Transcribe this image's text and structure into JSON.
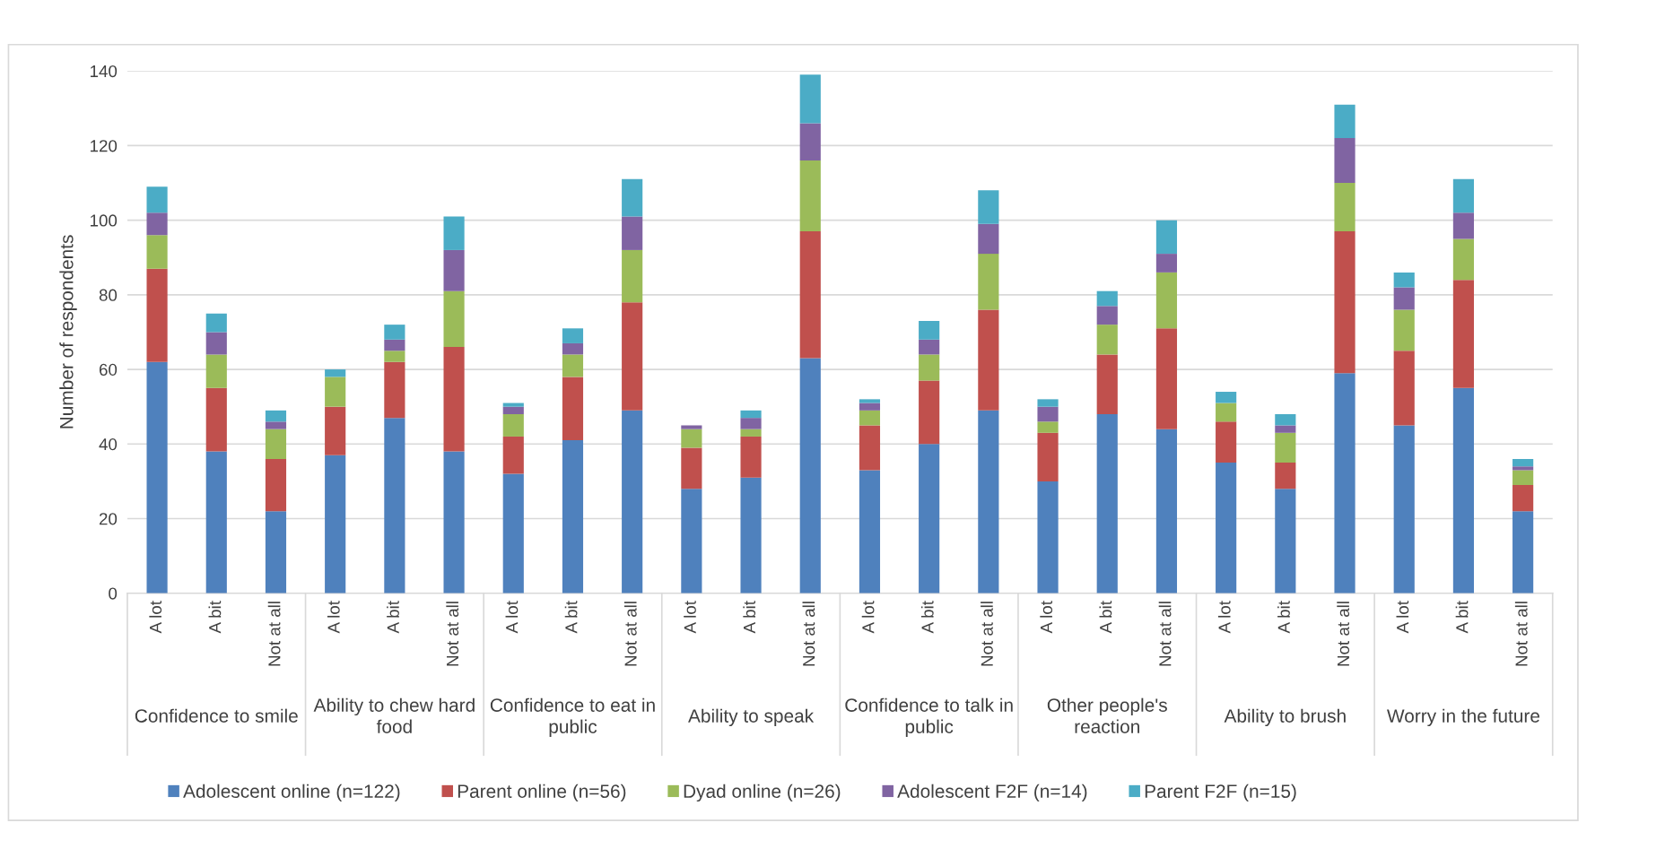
{
  "chart_data": {
    "type": "bar",
    "stacked": true,
    "ylabel": "Number of respondents",
    "categories": [
      "A lot",
      "A bit",
      "Not at all",
      "A lot",
      "A bit",
      "Not at all",
      "A lot",
      "A bit",
      "Not at all",
      "A lot",
      "A bit",
      "Not at all",
      "A lot",
      "A bit",
      "Not at all",
      "A lot",
      "A bit",
      "Not at all",
      "A lot",
      "A bit",
      "Not at all",
      "A lot",
      "A bit",
      "Not at all"
    ],
    "annotations": [
      "Confidence to smile",
      "Ability to chew hard food",
      "Confidence to eat in public",
      "Ability to speak",
      "Confidence to talk in public",
      "Other people's reaction",
      "Ability to brush",
      "Worry in the future"
    ],
    "series": [
      {
        "name": "Adolescent online (n=122)",
        "color": "#4f81bd",
        "values": [
          62,
          38,
          22,
          37,
          47,
          38,
          32,
          41,
          49,
          28,
          31,
          63,
          33,
          40,
          49,
          30,
          48,
          44,
          35,
          28,
          59,
          45,
          55,
          22
        ]
      },
      {
        "name": "Parent online (n=56)",
        "color": "#c0504d",
        "values": [
          25,
          17,
          14,
          13,
          15,
          28,
          10,
          17,
          29,
          11,
          11,
          34,
          12,
          17,
          27,
          13,
          16,
          27,
          11,
          7,
          38,
          20,
          29,
          7
        ]
      },
      {
        "name": "Dyad online (n=26)",
        "color": "#9bbb59",
        "values": [
          9,
          9,
          8,
          8,
          3,
          15,
          6,
          6,
          14,
          5,
          2,
          19,
          4,
          7,
          15,
          3,
          8,
          15,
          5,
          8,
          13,
          11,
          11,
          4
        ]
      },
      {
        "name": "Adolescent F2F (n=14)",
        "color": "#8064a2",
        "values": [
          6,
          6,
          2,
          0,
          3,
          11,
          2,
          3,
          9,
          1,
          3,
          10,
          2,
          4,
          8,
          4,
          5,
          5,
          0,
          2,
          12,
          6,
          7,
          1
        ]
      },
      {
        "name": "Parent F2F (n=15)",
        "color": "#4bacc6",
        "values": [
          7,
          5,
          3,
          2,
          4,
          9,
          1,
          4,
          10,
          0,
          2,
          13,
          1,
          5,
          9,
          2,
          4,
          9,
          3,
          3,
          9,
          4,
          9,
          2
        ]
      }
    ],
    "ylim": [
      0,
      140
    ],
    "yticks": [
      0,
      20,
      40,
      60,
      80,
      100,
      120,
      140
    ],
    "grid": "y",
    "legend": "bottom"
  }
}
